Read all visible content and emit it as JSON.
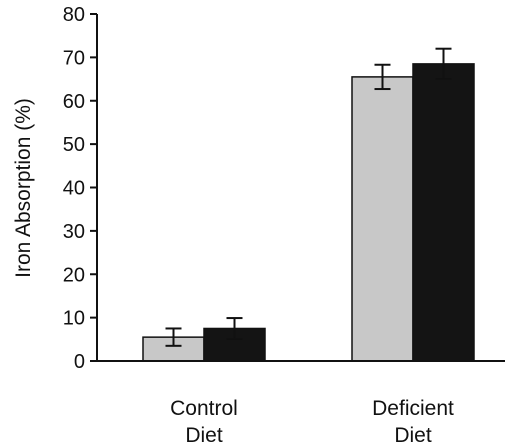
{
  "chart_data": {
    "type": "bar",
    "ylabel": "Iron Absorption (%)",
    "xlabel": "",
    "ylim": [
      0,
      80
    ],
    "yticks": [
      0,
      10,
      20,
      30,
      40,
      50,
      60,
      70,
      80
    ],
    "grid": false,
    "categories": [
      [
        "Control",
        "Diet"
      ],
      [
        "Deficient",
        "Diet"
      ]
    ],
    "series": [
      {
        "color": "#c8c8c8",
        "values": [
          5.5,
          65.5
        ],
        "errors": [
          2.0,
          2.8
        ]
      },
      {
        "color": "#141414",
        "values": [
          7.5,
          68.5
        ],
        "errors": [
          2.4,
          3.5
        ]
      }
    ]
  }
}
